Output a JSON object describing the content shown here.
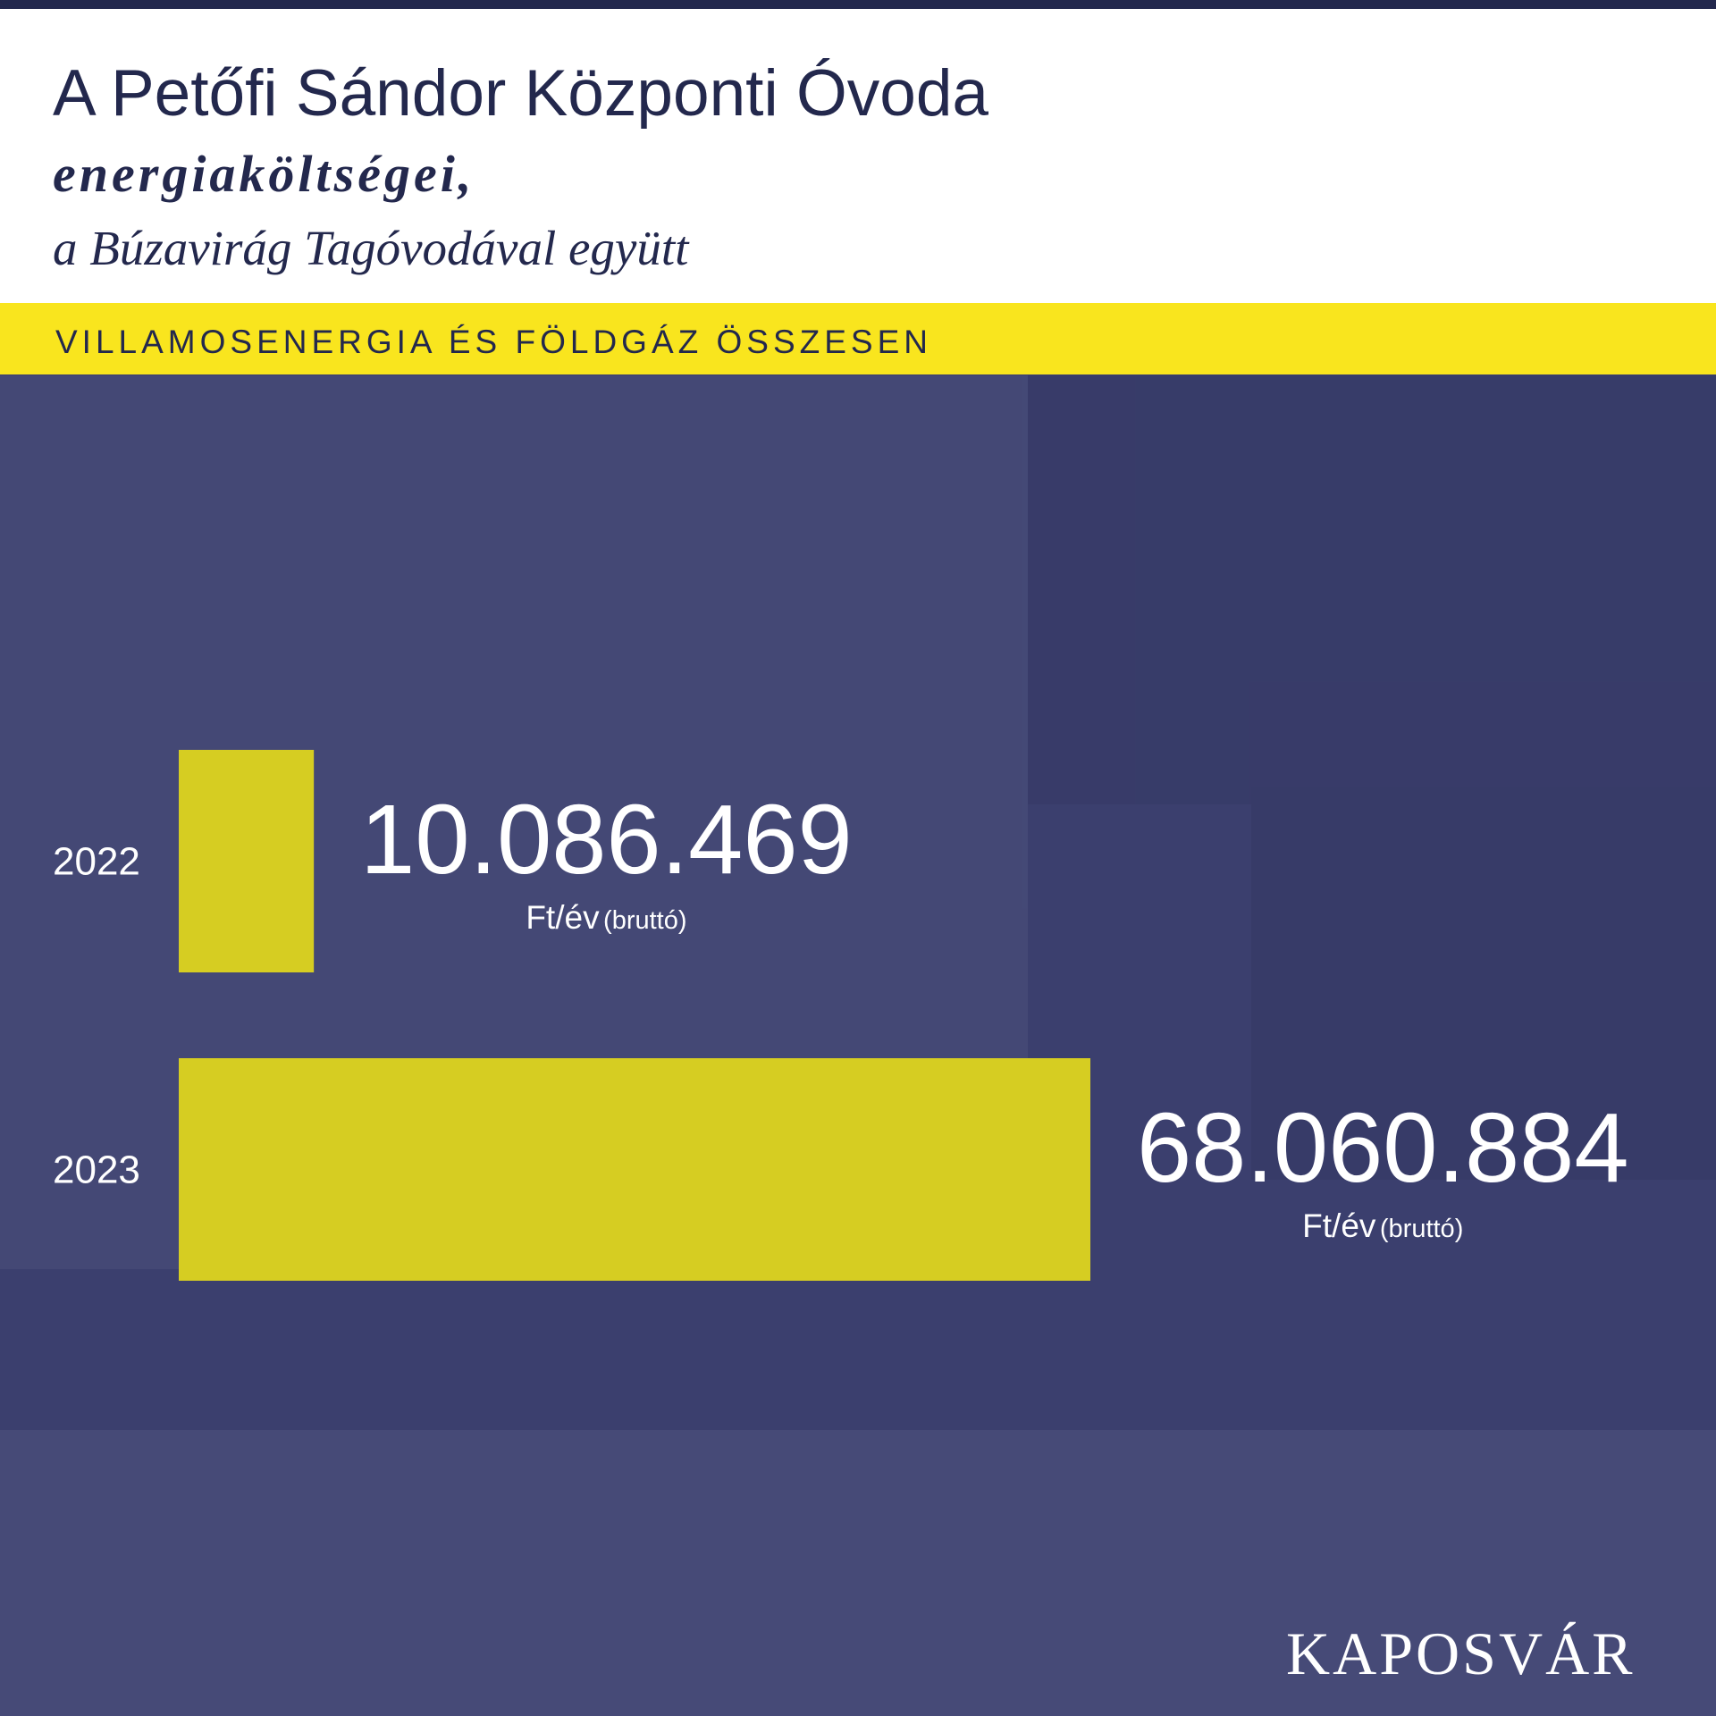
{
  "chart_data": {
    "type": "hbar",
    "title": "A Petőfi Sándor Központi Óvoda",
    "subtitle": "energiaköltségei,",
    "subtitle_2": "a Búzavirág Tagóvodával együtt",
    "section": "VILLAMOSENERGIA ÉS FÖLDGÁZ ÖSSZESEN",
    "categories": [
      "2022",
      "2023"
    ],
    "values": [
      10086469,
      68060884
    ],
    "value_labels": [
      "10.086.469",
      "68.060.884"
    ],
    "unit": "Ft/év",
    "unit_note": "(bruttó)",
    "color": "#d6cd22",
    "logo": "KAPOSVÁR"
  }
}
